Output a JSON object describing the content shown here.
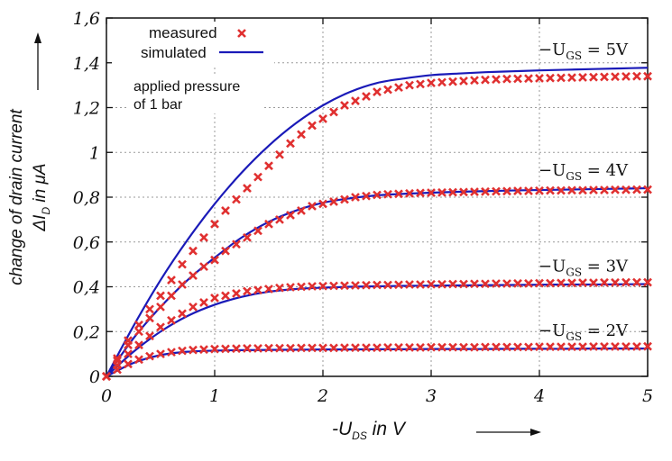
{
  "chart_data": {
    "type": "line",
    "xlabel": "-U",
    "xlabel_sub": "DS",
    "xlabel_suffix": " in V",
    "ylabel_line1": "change of drain current",
    "ylabel_delta": "ΔI",
    "ylabel_sub": "D",
    "ylabel_suffix": " in μA",
    "xlim": [
      0,
      5
    ],
    "ylim": [
      0,
      1.6
    ],
    "x_ticks": [
      "0",
      "1",
      "2",
      "3",
      "4",
      "5"
    ],
    "y_ticks": [
      "0",
      "0,2",
      "0,4",
      "0,6",
      "0,8",
      "1",
      "1,2",
      "1,4",
      "1,6"
    ],
    "grid": true,
    "legend_position": "top-left",
    "legend": {
      "measured": "measured",
      "simulated": "simulated"
    },
    "annotation_line1": "applied pressure",
    "annotation_line2": "of 1 bar",
    "colors": {
      "measured": "#e03030",
      "simulated": "#1a1ab8",
      "grid": "#9a9a9a"
    },
    "series": [
      {
        "label_prefix": "−U",
        "label_sub": "GS",
        "label_suffix": " = 5V",
        "sim": {
          "x": [
            0,
            0.25,
            0.5,
            0.75,
            1,
            1.25,
            1.5,
            1.75,
            2,
            2.25,
            2.5,
            2.75,
            3,
            3.25,
            3.5,
            3.75,
            4,
            4.25,
            4.5,
            4.75,
            5
          ],
          "y": [
            0,
            0.225,
            0.43,
            0.61,
            0.77,
            0.91,
            1.03,
            1.13,
            1.21,
            1.27,
            1.31,
            1.33,
            1.345,
            1.352,
            1.358,
            1.362,
            1.366,
            1.369,
            1.372,
            1.375,
            1.378
          ]
        },
        "meas": {
          "x": [
            0,
            0.1,
            0.2,
            0.3,
            0.4,
            0.5,
            0.6,
            0.7,
            0.8,
            0.9,
            1,
            1.1,
            1.2,
            1.3,
            1.4,
            1.5,
            1.6,
            1.7,
            1.8,
            1.9,
            2,
            2.1,
            2.2,
            2.3,
            2.4,
            2.5,
            2.6,
            2.7,
            2.8,
            2.9,
            3,
            3.1,
            3.2,
            3.3,
            3.4,
            3.5,
            3.6,
            3.7,
            3.8,
            3.9,
            4,
            4.1,
            4.2,
            4.3,
            4.4,
            4.5,
            4.6,
            4.7,
            4.8,
            4.9,
            5
          ],
          "y": [
            0,
            0.08,
            0.16,
            0.23,
            0.3,
            0.36,
            0.43,
            0.5,
            0.56,
            0.62,
            0.68,
            0.74,
            0.79,
            0.84,
            0.89,
            0.94,
            0.99,
            1.04,
            1.08,
            1.12,
            1.15,
            1.18,
            1.21,
            1.23,
            1.25,
            1.27,
            1.28,
            1.29,
            1.3,
            1.305,
            1.31,
            1.313,
            1.316,
            1.319,
            1.322,
            1.324,
            1.326,
            1.328,
            1.329,
            1.33,
            1.331,
            1.332,
            1.333,
            1.334,
            1.335,
            1.336,
            1.337,
            1.338,
            1.339,
            1.34,
            1.34
          ]
        }
      },
      {
        "label_prefix": "−U",
        "label_sub": "GS",
        "label_suffix": " = 4V",
        "sim": {
          "x": [
            0,
            0.25,
            0.5,
            0.75,
            1,
            1.25,
            1.5,
            1.75,
            2,
            2.25,
            2.5,
            2.75,
            3,
            3.25,
            3.5,
            3.75,
            4,
            4.25,
            4.5,
            4.75,
            5
          ],
          "y": [
            0,
            0.17,
            0.31,
            0.43,
            0.53,
            0.62,
            0.69,
            0.74,
            0.775,
            0.795,
            0.808,
            0.815,
            0.82,
            0.824,
            0.827,
            0.83,
            0.832,
            0.834,
            0.836,
            0.838,
            0.84
          ]
        },
        "meas": {
          "x": [
            0,
            0.1,
            0.2,
            0.3,
            0.4,
            0.5,
            0.6,
            0.7,
            0.8,
            0.9,
            1,
            1.1,
            1.2,
            1.3,
            1.4,
            1.5,
            1.6,
            1.7,
            1.8,
            1.9,
            2,
            2.1,
            2.2,
            2.3,
            2.4,
            2.5,
            2.6,
            2.7,
            2.8,
            2.9,
            3,
            3.1,
            3.2,
            3.3,
            3.4,
            3.5,
            3.6,
            3.7,
            3.8,
            3.9,
            4,
            4.1,
            4.2,
            4.3,
            4.4,
            4.5,
            4.6,
            4.7,
            4.8,
            4.9,
            5
          ],
          "y": [
            0,
            0.07,
            0.14,
            0.2,
            0.26,
            0.31,
            0.36,
            0.41,
            0.45,
            0.49,
            0.52,
            0.56,
            0.59,
            0.62,
            0.65,
            0.68,
            0.7,
            0.72,
            0.74,
            0.76,
            0.77,
            0.78,
            0.79,
            0.8,
            0.805,
            0.81,
            0.813,
            0.815,
            0.817,
            0.819,
            0.82,
            0.821,
            0.822,
            0.823,
            0.824,
            0.825,
            0.826,
            0.827,
            0.828,
            0.828,
            0.829,
            0.83,
            0.83,
            0.831,
            0.831,
            0.832,
            0.832,
            0.833,
            0.833,
            0.834,
            0.834
          ]
        }
      },
      {
        "label_prefix": "−U",
        "label_sub": "GS",
        "label_suffix": " = 3V",
        "sim": {
          "x": [
            0,
            0.25,
            0.5,
            0.75,
            1,
            1.25,
            1.5,
            1.75,
            2,
            2.25,
            2.5,
            2.75,
            3,
            3.25,
            3.5,
            3.75,
            4,
            4.25,
            4.5,
            4.75,
            5
          ],
          "y": [
            0,
            0.11,
            0.2,
            0.27,
            0.32,
            0.355,
            0.378,
            0.39,
            0.396,
            0.4,
            0.402,
            0.404,
            0.405,
            0.406,
            0.407,
            0.408,
            0.409,
            0.41,
            0.41,
            0.411,
            0.412
          ]
        },
        "meas": {
          "x": [
            0,
            0.1,
            0.2,
            0.3,
            0.4,
            0.5,
            0.6,
            0.7,
            0.8,
            0.9,
            1,
            1.1,
            1.2,
            1.3,
            1.4,
            1.5,
            1.6,
            1.7,
            1.8,
            1.9,
            2,
            2.1,
            2.2,
            2.3,
            2.4,
            2.5,
            2.6,
            2.7,
            2.8,
            2.9,
            3,
            3.1,
            3.2,
            3.3,
            3.4,
            3.5,
            3.6,
            3.7,
            3.8,
            3.9,
            4,
            4.1,
            4.2,
            4.3,
            4.4,
            4.5,
            4.6,
            4.7,
            4.8,
            4.9,
            5
          ],
          "y": [
            0,
            0.05,
            0.1,
            0.14,
            0.18,
            0.22,
            0.25,
            0.28,
            0.31,
            0.33,
            0.35,
            0.36,
            0.37,
            0.38,
            0.385,
            0.39,
            0.395,
            0.398,
            0.4,
            0.402,
            0.403,
            0.404,
            0.405,
            0.406,
            0.407,
            0.408,
            0.408,
            0.409,
            0.41,
            0.41,
            0.411,
            0.411,
            0.412,
            0.412,
            0.413,
            0.413,
            0.414,
            0.414,
            0.415,
            0.415,
            0.416,
            0.416,
            0.417,
            0.417,
            0.418,
            0.418,
            0.419,
            0.419,
            0.42,
            0.42,
            0.42
          ]
        }
      },
      {
        "label_prefix": "−U",
        "label_sub": "GS",
        "label_suffix": " = 2V",
        "sim": {
          "x": [
            0,
            0.25,
            0.5,
            0.75,
            1,
            1.25,
            1.5,
            1.75,
            2,
            2.25,
            2.5,
            2.75,
            3,
            3.25,
            3.5,
            3.75,
            4,
            4.25,
            4.5,
            4.75,
            5
          ],
          "y": [
            0,
            0.06,
            0.095,
            0.11,
            0.115,
            0.117,
            0.118,
            0.119,
            0.12,
            0.12,
            0.121,
            0.121,
            0.122,
            0.122,
            0.122,
            0.123,
            0.123,
            0.123,
            0.124,
            0.124,
            0.124
          ]
        },
        "meas": {
          "x": [
            0,
            0.1,
            0.2,
            0.3,
            0.4,
            0.5,
            0.6,
            0.7,
            0.8,
            0.9,
            1,
            1.1,
            1.2,
            1.3,
            1.4,
            1.5,
            1.6,
            1.7,
            1.8,
            1.9,
            2,
            2.1,
            2.2,
            2.3,
            2.4,
            2.5,
            2.6,
            2.7,
            2.8,
            2.9,
            3,
            3.1,
            3.2,
            3.3,
            3.4,
            3.5,
            3.6,
            3.7,
            3.8,
            3.9,
            4,
            4.1,
            4.2,
            4.3,
            4.4,
            4.5,
            4.6,
            4.7,
            4.8,
            4.9,
            5
          ],
          "y": [
            0,
            0.03,
            0.055,
            0.075,
            0.09,
            0.1,
            0.108,
            0.114,
            0.118,
            0.12,
            0.122,
            0.123,
            0.124,
            0.125,
            0.125,
            0.126,
            0.126,
            0.126,
            0.127,
            0.127,
            0.127,
            0.127,
            0.128,
            0.128,
            0.128,
            0.128,
            0.129,
            0.129,
            0.129,
            0.129,
            0.13,
            0.13,
            0.13,
            0.13,
            0.13,
            0.131,
            0.131,
            0.131,
            0.131,
            0.131,
            0.132,
            0.132,
            0.132,
            0.132,
            0.132,
            0.133,
            0.133,
            0.133,
            0.133,
            0.133,
            0.134
          ]
        }
      }
    ]
  }
}
